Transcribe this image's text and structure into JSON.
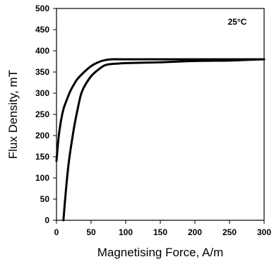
{
  "chart_data": {
    "type": "line",
    "title": "",
    "xlabel": "Magnetising Force, A/m",
    "ylabel": "Flux Density, mT",
    "annotation": "25°C",
    "xlim": [
      0,
      300
    ],
    "ylim": [
      0,
      500
    ],
    "x_ticks": [
      0,
      50,
      100,
      150,
      200,
      250,
      300
    ],
    "y_ticks": [
      0,
      50,
      100,
      150,
      200,
      250,
      300,
      350,
      400,
      450,
      500
    ],
    "grid": false,
    "legend": "none",
    "line_color": "#000000",
    "series": [
      {
        "x": [
          0,
          3,
          6,
          10,
          15,
          20,
          25,
          30,
          40,
          50,
          60,
          70,
          80,
          100,
          150,
          200,
          250,
          300
        ],
        "y": [
          140,
          195,
          230,
          262,
          285,
          305,
          320,
          333,
          350,
          364,
          373,
          378,
          380,
          380,
          380,
          380,
          380,
          380
        ]
      },
      {
        "x": [
          10,
          12,
          15,
          18,
          22,
          26,
          30,
          35,
          40,
          50,
          60,
          70,
          80,
          90,
          100,
          150,
          200,
          250,
          280,
          300
        ],
        "y": [
          0,
          40,
          95,
          140,
          185,
          225,
          258,
          295,
          315,
          340,
          355,
          366,
          369,
          370,
          371,
          373,
          376,
          377,
          379,
          380
        ]
      }
    ]
  }
}
